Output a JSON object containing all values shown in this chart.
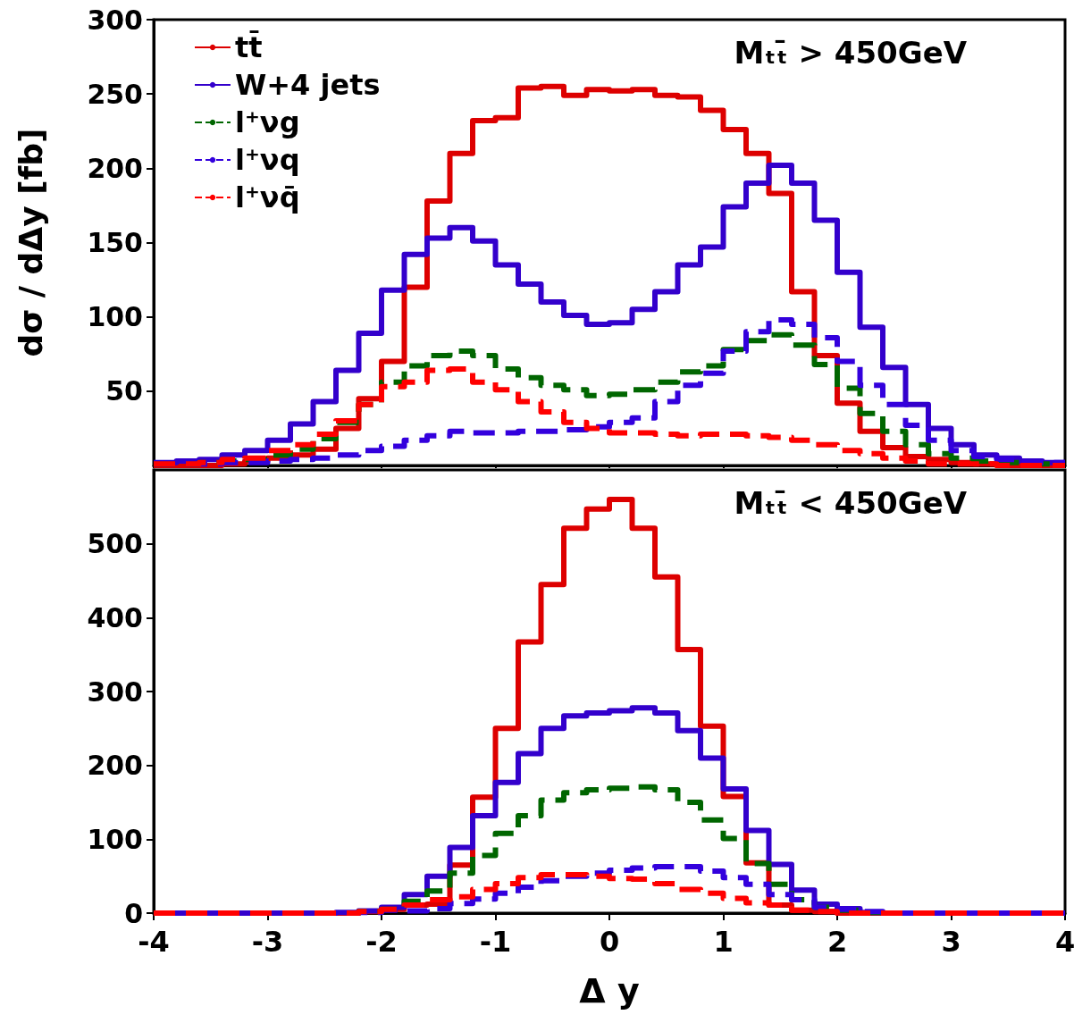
{
  "chart_data": [
    {
      "type": "histogram",
      "ylabel": "dσ / dΔy [fb]",
      "annotations": [
        "Mₜₜ̄ > 450GeV"
      ],
      "legend": "top left",
      "marker": "none",
      "grid": false,
      "tick_labels": "y",
      "xlim": [
        -4,
        4
      ],
      "xticks": [
        -4,
        -3,
        -2,
        -1,
        0,
        1,
        2,
        3,
        4
      ],
      "ylim": [
        0,
        300
      ],
      "yticks": [
        50,
        100,
        150,
        200,
        250,
        300
      ],
      "bins": [
        -4,
        -3.8,
        -3.6,
        -3.4,
        -3.2,
        -3,
        -2.8,
        -2.6,
        -2.4,
        -2.2,
        -2,
        -1.8,
        -1.6,
        -1.4,
        -1.2,
        -1,
        -0.8,
        -0.6,
        -0.4,
        -0.2,
        0,
        0.2,
        0.4,
        0.6,
        0.8,
        1,
        1.2,
        1.4,
        1.6,
        1.8,
        2,
        2.2,
        2.4,
        2.6,
        2.8,
        3,
        3.2,
        3.4,
        3.6,
        3.8,
        4
      ],
      "series": [
        {
          "name": "tt̄",
          "color": "#dd0000",
          "line_style": "solid",
          "values": [
            0,
            0,
            0,
            1,
            3,
            5,
            7,
            11,
            25,
            45,
            70,
            120,
            178,
            210,
            232,
            234,
            254,
            255,
            249,
            253,
            252,
            253,
            249,
            248,
            239,
            226,
            210,
            183,
            117,
            74,
            42,
            23,
            12,
            6,
            4,
            2,
            1,
            0,
            0,
            0
          ]
        },
        {
          "name": "W+4 jets",
          "color": "#3300cc",
          "line_style": "solid",
          "values": [
            2,
            3,
            4,
            7,
            10,
            17,
            28,
            43,
            64,
            89,
            118,
            142,
            153,
            160,
            151,
            135,
            122,
            110,
            101,
            95,
            96,
            105,
            117,
            135,
            147,
            174,
            190,
            202,
            190,
            165,
            130,
            93,
            66,
            41,
            25,
            14,
            7,
            5,
            3,
            2
          ]
        },
        {
          "name": "l⁺νg",
          "color": "#006600",
          "line_style": "dashed",
          "values": [
            1,
            1,
            2,
            3,
            4,
            7,
            11,
            18,
            29,
            41,
            56,
            67,
            74,
            77,
            74,
            65,
            59,
            54,
            51,
            47,
            48,
            51,
            56,
            63,
            67,
            78,
            84,
            88,
            81,
            68,
            52,
            35,
            23,
            14,
            8,
            5,
            3,
            2,
            1,
            1
          ]
        },
        {
          "name": "l⁺νq",
          "color": "#3300dd",
          "line_style": "dashed",
          "values": [
            1,
            1,
            1,
            2,
            2,
            3,
            4,
            5,
            7,
            10,
            13,
            17,
            20,
            23,
            22,
            22,
            23,
            23,
            24,
            26,
            29,
            32,
            43,
            54,
            62,
            77,
            90,
            98,
            95,
            86,
            70,
            54,
            41,
            27,
            17,
            10,
            6,
            4,
            2,
            2
          ]
        },
        {
          "name": "l⁺νq̄",
          "color": "#ff0000",
          "line_style": "dashed",
          "values": [
            1,
            1,
            2,
            4,
            5,
            10,
            14,
            21,
            30,
            41,
            53,
            56,
            64,
            65,
            56,
            51,
            43,
            36,
            29,
            25,
            22,
            22,
            21,
            20,
            21,
            21,
            20,
            19,
            17,
            14,
            10,
            8,
            5,
            3,
            1,
            1,
            1,
            0,
            0,
            0
          ]
        }
      ]
    },
    {
      "type": "histogram",
      "xlabel": "Δ y",
      "annotations": [
        "Mₜₜ̄ < 450GeV"
      ],
      "marker": "none",
      "grid": false,
      "xlim": [
        -4,
        4
      ],
      "xticks": [
        -4,
        -3,
        -2,
        -1,
        0,
        1,
        2,
        3,
        4
      ],
      "ylim": [
        0,
        600
      ],
      "yticks": [
        0,
        100,
        200,
        300,
        400,
        500
      ],
      "bins": [
        -4,
        -3.8,
        -3.6,
        -3.4,
        -3.2,
        -3,
        -2.8,
        -2.6,
        -2.4,
        -2.2,
        -2,
        -1.8,
        -1.6,
        -1.4,
        -1.2,
        -1,
        -0.8,
        -0.6,
        -0.4,
        -0.2,
        0,
        0.2,
        0.4,
        0.6,
        0.8,
        1,
        1.2,
        1.4,
        1.6,
        1.8,
        2,
        2.2,
        2.4,
        2.6,
        2.8,
        3,
        3.2,
        3.4,
        3.6,
        3.8,
        4
      ],
      "series": [
        {
          "color": "#dd0000",
          "line_style": "solid",
          "values": [
            0,
            0,
            0,
            0,
            0,
            0,
            0,
            0,
            0,
            2,
            5,
            11,
            12,
            65,
            157,
            250,
            367,
            445,
            521,
            547,
            560,
            521,
            455,
            357,
            253,
            158,
            68,
            11,
            4,
            2,
            0,
            0,
            0,
            0,
            0,
            0,
            0,
            0,
            0,
            0
          ]
        },
        {
          "color": "#3300cc",
          "line_style": "solid",
          "values": [
            0,
            0,
            0,
            0,
            0,
            0,
            0,
            0,
            1,
            3,
            8,
            25,
            50,
            89,
            132,
            177,
            216,
            250,
            267,
            271,
            274,
            278,
            271,
            247,
            210,
            168,
            112,
            66,
            31,
            12,
            6,
            1,
            0,
            0,
            0,
            0,
            0,
            0,
            0,
            0
          ]
        },
        {
          "color": "#006600",
          "line_style": "dashed",
          "values": [
            0,
            0,
            0,
            0,
            0,
            0,
            0,
            0,
            0,
            2,
            5,
            16,
            30,
            54,
            78,
            108,
            132,
            153,
            163,
            167,
            169,
            171,
            167,
            150,
            126,
            101,
            67,
            39,
            18,
            8,
            4,
            1,
            0,
            0,
            0,
            0,
            0,
            0,
            0,
            0
          ]
        },
        {
          "color": "#3300dd",
          "line_style": "dashed",
          "values": [
            0,
            0,
            0,
            0,
            0,
            0,
            0,
            0,
            0,
            1,
            4,
            3,
            6,
            13,
            19,
            27,
            35,
            44,
            50,
            54,
            58,
            61,
            63,
            63,
            57,
            48,
            39,
            25,
            18,
            8,
            5,
            2,
            0,
            0,
            0,
            0,
            0,
            0,
            0,
            0
          ]
        },
        {
          "color": "#ff0000",
          "line_style": "dashed",
          "values": [
            0,
            0,
            0,
            0,
            0,
            0,
            0,
            0,
            0,
            2,
            5,
            11,
            18,
            22,
            32,
            40,
            48,
            52,
            52,
            50,
            47,
            46,
            40,
            32,
            27,
            20,
            14,
            11,
            4,
            2,
            0,
            0,
            0,
            0,
            0,
            0,
            0,
            0,
            0,
            0
          ]
        }
      ]
    }
  ]
}
